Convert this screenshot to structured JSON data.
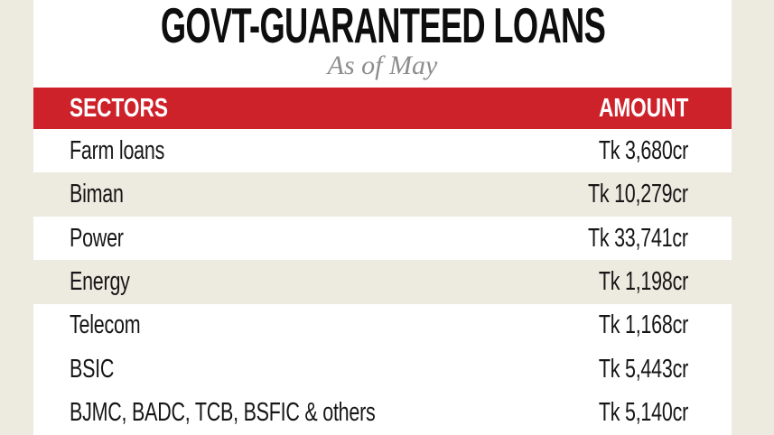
{
  "title": "GOVT-GUARANTEED LOANS",
  "subtitle": "As of May",
  "table": {
    "header": {
      "sectors": "SECTORS",
      "amount": "AMOUNT"
    },
    "rows": [
      {
        "sector": "Farm loans",
        "amount": "Tk 3,680cr"
      },
      {
        "sector": "Biman",
        "amount": "Tk 10,279cr"
      },
      {
        "sector": "Power",
        "amount": "Tk 33,741cr"
      },
      {
        "sector": "Energy",
        "amount": "Tk 1,198cr"
      },
      {
        "sector": "Telecom",
        "amount": "Tk 1,168cr"
      },
      {
        "sector": "BSIC",
        "amount": "Tk 5,443cr"
      },
      {
        "sector": "BJMC, BADC, TCB, BSFIC & others",
        "amount": "Tk 5,140cr"
      }
    ]
  },
  "colors": {
    "header_background": "#ce222b",
    "header_text": "#ffffff",
    "page_background_beige": "#edeae0",
    "row_white": "#ffffff",
    "row_shaded_beige": "#edeae0",
    "title_text": "#0e0e0e",
    "subtitle_text": "#8d8d8d",
    "row_text": "#161616"
  },
  "chart_data": {
    "type": "table",
    "title": "GOVT-GUARANTEED LOANS",
    "subtitle": "As of May",
    "columns": [
      "SECTORS",
      "AMOUNT"
    ],
    "categories": [
      "Farm loans",
      "Biman",
      "Power",
      "Energy",
      "Telecom",
      "BSIC",
      "BJMC, BADC, TCB, BSFIC & others"
    ],
    "values": [
      3680,
      10279,
      33741,
      1198,
      1168,
      5443,
      5140
    ],
    "unit": "Tk crore",
    "amount_labels": [
      "Tk 3,680cr",
      "Tk 10,279cr",
      "Tk 33,741cr",
      "Tk 1,198cr",
      "Tk 1,168cr",
      "Tk 5,443cr",
      "Tk 5,140cr"
    ]
  }
}
